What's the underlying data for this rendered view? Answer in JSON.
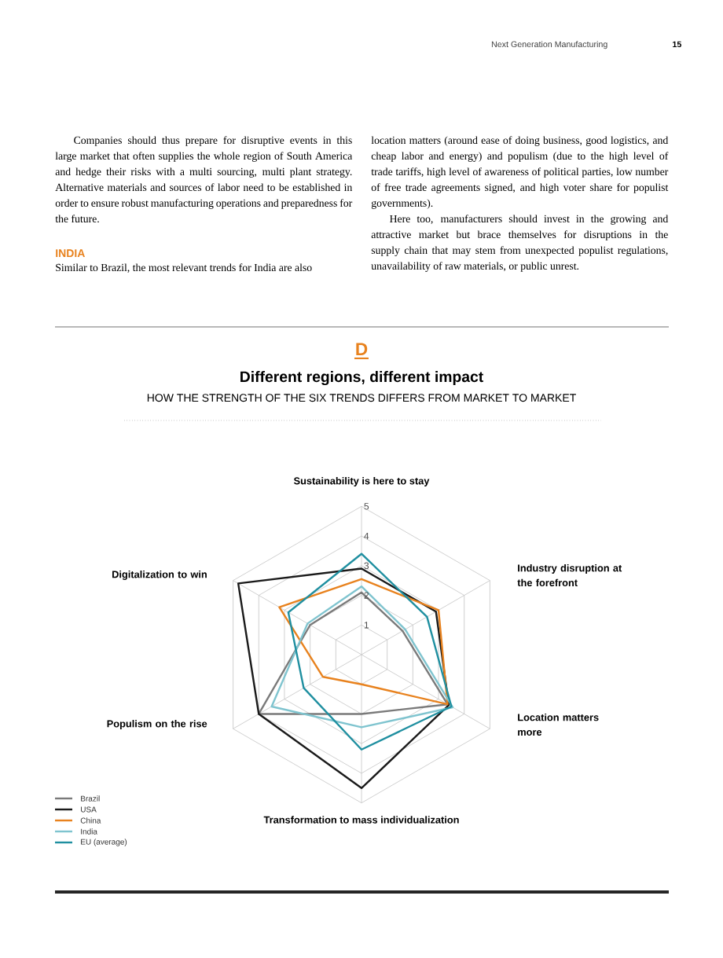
{
  "chart_data": {
    "type": "radar",
    "title": "Different regions, different impact",
    "subtitle": "HOW THE STRENGTH OF THE SIX TRENDS DIFFERS FROM MARKET TO MARKET",
    "categories": [
      "Sustainability is here to stay",
      "Industry disruption at the forefront",
      "Location matters more",
      "Transformation to mass individualization",
      "Populism on the rise",
      "Digitalization to win"
    ],
    "series": [
      {
        "name": "Brazil",
        "color": "#7a7a7a",
        "values": [
          2.1,
          1.6,
          3.35,
          2.0,
          4.0,
          2.0
        ]
      },
      {
        "name": "USA",
        "color": "#1a1a1a",
        "values": [
          2.9,
          2.9,
          3.4,
          4.5,
          4.0,
          4.8
        ]
      },
      {
        "name": "China",
        "color": "#e8821e",
        "values": [
          2.55,
          3.0,
          3.35,
          1.0,
          1.5,
          3.2
        ]
      },
      {
        "name": "India",
        "color": "#7fc4cf",
        "values": [
          2.3,
          1.7,
          3.55,
          2.45,
          3.5,
          2.1
        ]
      },
      {
        "name": "EU (average)",
        "color": "#1f8fa0",
        "values": [
          3.4,
          2.55,
          3.5,
          3.2,
          2.25,
          2.85
        ]
      }
    ],
    "ylim": [
      0,
      5
    ],
    "yticks": [
      1,
      2,
      3,
      4,
      5
    ],
    "grid": true,
    "legend": "bottom left",
    "line_style": "solid",
    "marker": "none",
    "annotations": [
      "Next Generation Manufacturing",
      "15",
      "Companies should thus prepare for disruptive events in this large market that often supplies the whole region of South America and hedge their risks with a multi sourcing, multi plant strategy. Alternative materials and sources of labor need to be established in order to ensure robust manufacturing operations and preparedness for the future.",
      "INDIA",
      "Similar to Brazil, the most relevant trends for India are also",
      "location matters (around ease of doing business, good logistics, and cheap labor and energy) and populism (due to the high level of trade tariffs, high level of awareness of political parties, low number of free trade agreements signed, and high voter share for populist governments).",
      "Here too, manufacturers should invest in the growing and attractive market but brace themselves for disruptions in the supply chain that may stem from unexpected populist regulations, unavailability of raw materials, or public unrest.",
      "D"
    ]
  }
}
